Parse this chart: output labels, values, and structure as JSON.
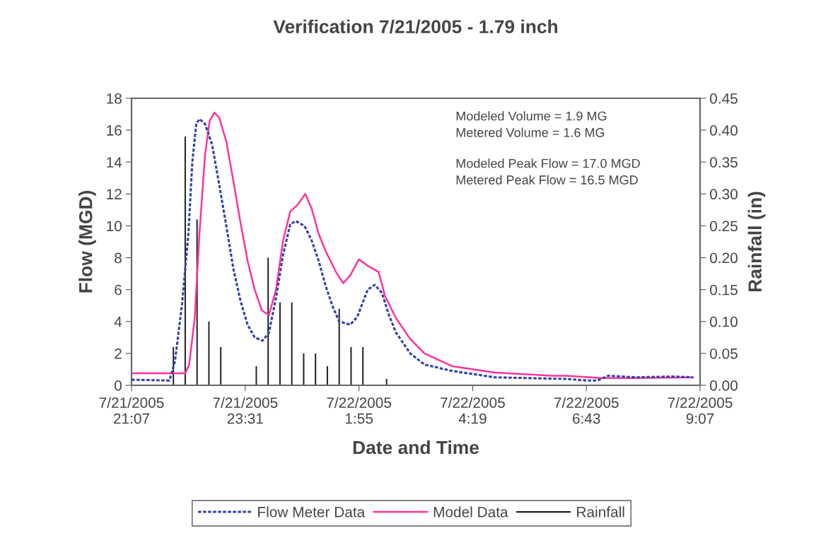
{
  "chart_data": {
    "type": "line",
    "title": "Verification 7/21/2005 - 1.79 inch",
    "xlabel": "Date and Time",
    "ylabel": "Flow (MGD)",
    "y2label": "Rainfall (in)",
    "annotations": [
      "Modeled Volume = 1.9 MG\nMetered Volume = 1.6 MG",
      "Modeled Peak Flow = 17.0 MGD\nMetered Peak Flow = 16.5 MGD"
    ],
    "xlim": [
      "2005-07-21T21:07",
      "2005-07-22T09:07"
    ],
    "xticks": [
      {
        "value": "2005-07-21T21:07",
        "label": "7/21/2005\n21:07"
      },
      {
        "value": "2005-07-21T23:31",
        "label": "7/21/2005\n23:31"
      },
      {
        "value": "2005-07-22T01:55",
        "label": "7/22/2005\n1:55"
      },
      {
        "value": "2005-07-22T04:19",
        "label": "7/22/2005\n4:19"
      },
      {
        "value": "2005-07-22T06:43",
        "label": "7/22/2005\n6:43"
      },
      {
        "value": "2005-07-22T09:07",
        "label": "7/22/2005\n9:07"
      }
    ],
    "ylim": [
      0,
      18
    ],
    "yticks": [
      0,
      2,
      4,
      6,
      8,
      10,
      12,
      14,
      16,
      18
    ],
    "y2lim": [
      0,
      0.45
    ],
    "y2ticks": [
      {
        "value": 0,
        "label": "0.00"
      },
      {
        "value": 0.05,
        "label": "0.05"
      },
      {
        "value": 0.1,
        "label": "0.10"
      },
      {
        "value": 0.15,
        "label": "0.15"
      },
      {
        "value": 0.2,
        "label": "0.20"
      },
      {
        "value": 0.25,
        "label": "0.25"
      },
      {
        "value": 0.3,
        "label": "0.30"
      },
      {
        "value": 0.35,
        "label": "0.35"
      },
      {
        "value": 0.4,
        "label": "0.40"
      },
      {
        "value": 0.45,
        "label": "0.45"
      }
    ],
    "grid": false,
    "legend": "bottom",
    "series": [
      {
        "name": "Flow Meter Data",
        "line_style": "dotted",
        "color": "#3340a8",
        "x": [
          "2005-07-21T21:07",
          "2005-07-21T21:55",
          "2005-07-21T22:02",
          "2005-07-21T22:11",
          "2005-07-21T22:19",
          "2005-07-21T22:24",
          "2005-07-21T22:29",
          "2005-07-21T22:33",
          "2005-07-21T22:40",
          "2005-07-21T22:49",
          "2005-07-21T22:58",
          "2005-07-21T23:07",
          "2005-07-21T23:16",
          "2005-07-21T23:25",
          "2005-07-21T23:34",
          "2005-07-21T23:43",
          "2005-07-21T23:53",
          "2005-07-22T00:01",
          "2005-07-22T00:10",
          "2005-07-22T00:19",
          "2005-07-22T00:28",
          "2005-07-22T00:35",
          "2005-07-22T00:46",
          "2005-07-22T00:55",
          "2005-07-22T01:04",
          "2005-07-22T01:13",
          "2005-07-22T01:22",
          "2005-07-22T01:30",
          "2005-07-22T01:44",
          "2005-07-22T01:53",
          "2005-07-22T02:06",
          "2005-07-22T02:15",
          "2005-07-22T02:24",
          "2005-07-22T02:33",
          "2005-07-22T02:42",
          "2005-07-22T03:00",
          "2005-07-22T03:18",
          "2005-07-22T03:53",
          "2005-07-22T04:47",
          "2005-07-22T05:32",
          "2005-07-22T06:17",
          "2005-07-22T06:44",
          "2005-07-22T06:57",
          "2005-07-22T07:11",
          "2005-07-22T07:46",
          "2005-07-22T08:31",
          "2005-07-22T08:58"
        ],
        "values": [
          0.35,
          0.3,
          1.5,
          5.1,
          9.5,
          14,
          16.4,
          16.7,
          16.4,
          15.1,
          12.6,
          10,
          7.3,
          5.3,
          3.8,
          3.0,
          2.8,
          3.3,
          5.5,
          8.2,
          10.1,
          10.3,
          10,
          9.1,
          7.8,
          6.2,
          4.9,
          4.0,
          3.8,
          4.3,
          6,
          6.3,
          5.8,
          4.4,
          3.3,
          2.0,
          1.3,
          0.9,
          0.5,
          0.45,
          0.4,
          0.3,
          0.3,
          0.6,
          0.5,
          0.55,
          0.5
        ]
      },
      {
        "name": "Model Data",
        "line_style": "solid",
        "color": "#ff3399",
        "x": [
          "2005-07-21T21:07",
          "2005-07-21T22:15",
          "2005-07-21T22:20",
          "2005-07-21T22:27",
          "2005-07-21T22:33",
          "2005-07-21T22:40",
          "2005-07-21T22:46",
          "2005-07-21T22:52",
          "2005-07-21T22:58",
          "2005-07-21T23:07",
          "2005-07-21T23:16",
          "2005-07-21T23:25",
          "2005-07-21T23:34",
          "2005-07-21T23:43",
          "2005-07-21T23:52",
          "2005-07-22T00:01",
          "2005-07-22T00:10",
          "2005-07-22T00:19",
          "2005-07-22T00:28",
          "2005-07-22T00:37",
          "2005-07-22T00:47",
          "2005-07-22T00:55",
          "2005-07-22T01:04",
          "2005-07-22T01:13",
          "2005-07-22T01:26",
          "2005-07-22T01:35",
          "2005-07-22T01:44",
          "2005-07-22T01:55",
          "2005-07-22T02:06",
          "2005-07-22T02:20",
          "2005-07-22T02:28",
          "2005-07-22T02:42",
          "2005-07-22T03:00",
          "2005-07-22T03:18",
          "2005-07-22T03:53",
          "2005-07-22T04:47",
          "2005-07-22T05:59",
          "2005-07-22T06:17",
          "2005-07-22T07:02",
          "2005-07-22T07:46",
          "2005-07-22T08:58"
        ],
        "values": [
          0.75,
          0.75,
          1.3,
          4.2,
          9.5,
          14.4,
          16.6,
          17.1,
          16.8,
          15.3,
          12.8,
          10.2,
          7.8,
          6,
          4.7,
          4.4,
          6,
          9.1,
          10.9,
          11.3,
          12,
          11.1,
          9.5,
          8.4,
          7.1,
          6.4,
          6.9,
          7.9,
          7.5,
          7.1,
          5.6,
          4.2,
          2.9,
          2.0,
          1.2,
          0.8,
          0.6,
          0.6,
          0.45,
          0.45,
          0.5
        ]
      },
      {
        "name": "Rainfall",
        "type": "bar",
        "axis": "y2",
        "color": "#222222",
        "x": [
          "2005-07-21T22:00",
          "2005-07-21T22:15",
          "2005-07-21T22:30",
          "2005-07-21T22:45",
          "2005-07-21T23:00",
          "2005-07-21T23:45",
          "2005-07-22T00:00",
          "2005-07-22T00:15",
          "2005-07-22T00:30",
          "2005-07-22T00:45",
          "2005-07-22T01:00",
          "2005-07-22T01:15",
          "2005-07-22T01:30",
          "2005-07-22T01:45",
          "2005-07-22T02:00",
          "2005-07-22T02:30"
        ],
        "values": [
          0.06,
          0.39,
          0.26,
          0.1,
          0.06,
          0.03,
          0.2,
          0.13,
          0.13,
          0.05,
          0.05,
          0.03,
          0.12,
          0.06,
          0.06,
          0.01
        ]
      }
    ]
  }
}
